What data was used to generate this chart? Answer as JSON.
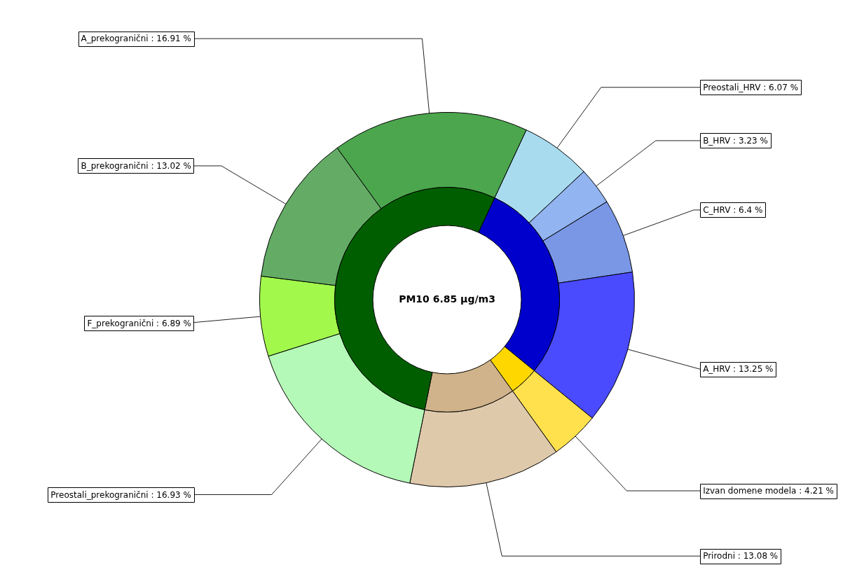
{
  "chart_data": [
    {
      "type": "donut",
      "title": "PM10 6.85 µg/m3",
      "categories": [
        "Preostali_HRV",
        "B_HRV",
        "C_HRV",
        "A_HRV",
        "Izvan domene modela",
        "Prirodni",
        "Preostali_prekogranični",
        "F_prekogranični",
        "B_prekogranični",
        "A_prekogranični"
      ],
      "values": [
        6.07,
        3.23,
        6.4,
        13.25,
        4.21,
        13.08,
        16.93,
        6.89,
        13.02,
        16.91
      ],
      "colors": [
        "#a9dbef",
        "#92b4f0",
        "#7a97e6",
        "#4a4aff",
        "#ffe04d",
        "#dfc9ab",
        "#b4f9b7",
        "#a2f94c",
        "#64ac66",
        "#4ca64d"
      ],
      "value_labels": [
        "6.07 %",
        "3.23 %",
        "6.4 %",
        "13.25 %",
        "4.21 %",
        "13.08 %",
        "16.93 %",
        "6.89 %",
        "13.02 %",
        "16.91 %"
      ]
    },
    {
      "type": "donut",
      "categories": [
        null,
        null,
        null,
        null
      ],
      "values": [
        28.95,
        4.21,
        13.08,
        53.75
      ],
      "colors": [
        "#0000cc",
        "#ffd700",
        "#d0b38a",
        "#005e00"
      ]
    }
  ]
}
